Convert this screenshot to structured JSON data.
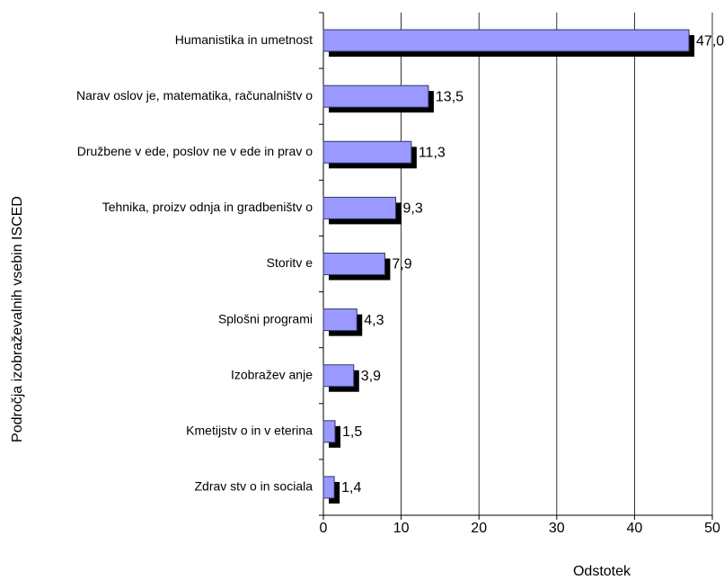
{
  "chart_data": {
    "type": "bar",
    "orientation": "horizontal",
    "categories": [
      "Humanistika in umetnost",
      "Narav oslov je, matematika, računalništv o",
      "Družbene v ede, poslov ne v ede in prav o",
      "Tehnika, proizv odnja in gradbeništv o",
      "Storitv e",
      "Splošni programi",
      "Izobražev anje",
      "Kmetijstv o in v eterina",
      "Zdrav stv o in sociala"
    ],
    "values": [
      47.0,
      13.5,
      11.3,
      9.3,
      7.9,
      4.3,
      3.9,
      1.5,
      1.4
    ],
    "value_labels": [
      "47,0",
      "13,5",
      "11,3",
      "9,3",
      "7,9",
      "4,3",
      "3,9",
      "1,5",
      "1,4"
    ],
    "color": "#9999ff",
    "xlim": [
      0,
      50
    ],
    "xticks": [
      0,
      10,
      20,
      30,
      40,
      50
    ],
    "grid": true,
    "xlabel": "Odstotek",
    "ylabel": "Področja izobraževalnih vsebin  ISCED"
  }
}
